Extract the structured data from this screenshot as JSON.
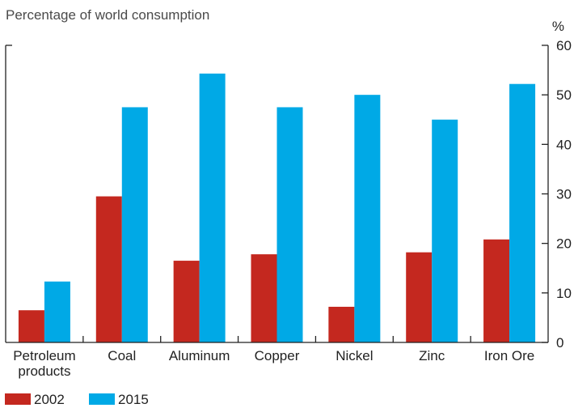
{
  "chart_data": {
    "type": "bar",
    "subtitle": "Percentage of world consumption",
    "y_unit": "%",
    "categories": [
      [
        "Petroleum",
        "products"
      ],
      [
        "Coal"
      ],
      [
        "Aluminum"
      ],
      [
        "Copper"
      ],
      [
        "Nickel"
      ],
      [
        "Zinc"
      ],
      [
        "Iron Ore"
      ]
    ],
    "series": [
      {
        "name": "2002",
        "color": "#c4281f",
        "values": [
          6.5,
          29.5,
          16.5,
          17.8,
          7.2,
          18.2,
          20.8
        ]
      },
      {
        "name": "2015",
        "color": "#00a9e6",
        "values": [
          12.3,
          47.5,
          54.3,
          47.5,
          50.0,
          45.0,
          52.2
        ]
      }
    ],
    "ylim": [
      0,
      60
    ],
    "yticks": [
      0,
      10,
      20,
      30,
      40,
      50,
      60
    ],
    "y_axis_side": "right",
    "grid": false,
    "legend_placement": "bottom-left"
  }
}
